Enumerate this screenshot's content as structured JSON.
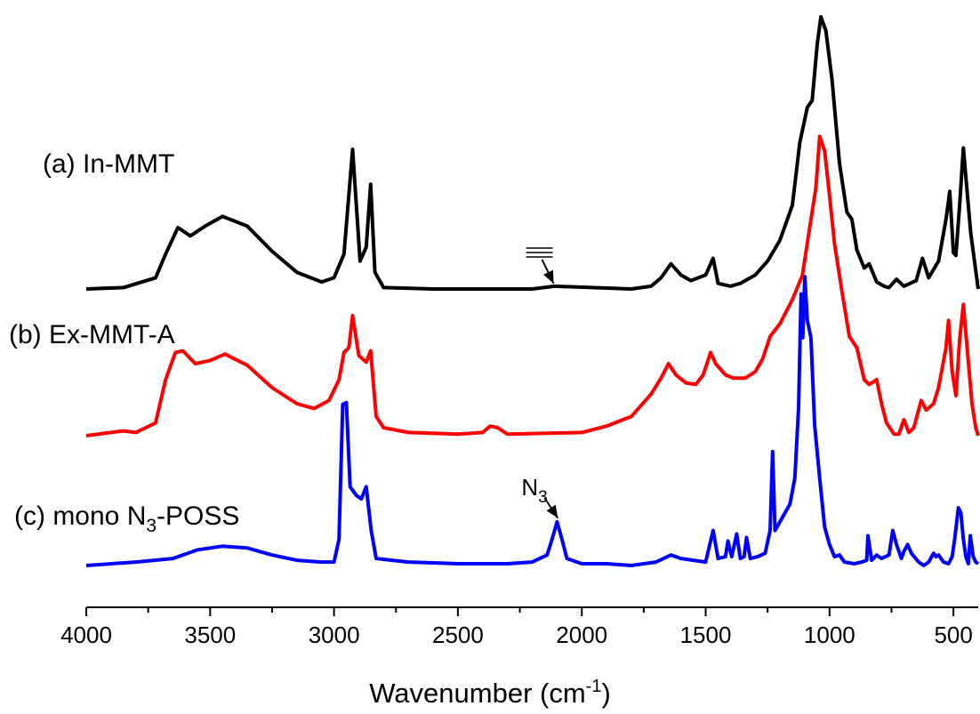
{
  "chart_data": {
    "type": "line",
    "xlabel": "Wavenumber (cm",
    "xlabel_sup": "-1",
    "xlabel_end": ")",
    "ylabel": "",
    "xlim": [
      4000,
      400
    ],
    "x_reversed": true,
    "xticks": [
      4000,
      3500,
      3000,
      2500,
      2000,
      1500,
      1000,
      500
    ],
    "yticks_shown": false,
    "grid": false,
    "series": [
      {
        "name": "(a) In-MMT",
        "name_prefix": "(a) In-MMT",
        "name_sub": "",
        "name_suffix": "",
        "color": "#000000",
        "points": [
          [
            4000,
            0
          ],
          [
            3850,
            0.01
          ],
          [
            3720,
            0.08
          ],
          [
            3680,
            0.25
          ],
          [
            3630,
            0.44
          ],
          [
            3580,
            0.38
          ],
          [
            3520,
            0.45
          ],
          [
            3450,
            0.52
          ],
          [
            3350,
            0.45
          ],
          [
            3250,
            0.27
          ],
          [
            3150,
            0.12
          ],
          [
            3050,
            0.05
          ],
          [
            3000,
            0.08
          ],
          [
            2960,
            0.25
          ],
          [
            2925,
            1.0
          ],
          [
            2895,
            0.2
          ],
          [
            2870,
            0.3
          ],
          [
            2852,
            0.75
          ],
          [
            2835,
            0.12
          ],
          [
            2800,
            0.01
          ],
          [
            2600,
            0
          ],
          [
            2200,
            0
          ],
          [
            2110,
            0.02
          ],
          [
            1800,
            0
          ],
          [
            1720,
            0.02
          ],
          [
            1680,
            0.08
          ],
          [
            1640,
            0.18
          ],
          [
            1600,
            0.1
          ],
          [
            1560,
            0.06
          ],
          [
            1500,
            0.1
          ],
          [
            1470,
            0.22
          ],
          [
            1450,
            0.04
          ],
          [
            1400,
            0.02
          ],
          [
            1360,
            0.04
          ],
          [
            1300,
            0.1
          ],
          [
            1250,
            0.2
          ],
          [
            1200,
            0.35
          ],
          [
            1150,
            0.6
          ],
          [
            1120,
            1.05
          ],
          [
            1090,
            1.3
          ],
          [
            1070,
            1.35
          ],
          [
            1050,
            1.75
          ],
          [
            1035,
            1.95
          ],
          [
            1015,
            1.85
          ],
          [
            990,
            1.5
          ],
          [
            960,
            0.9
          ],
          [
            930,
            0.55
          ],
          [
            910,
            0.5
          ],
          [
            890,
            0.28
          ],
          [
            860,
            0.15
          ],
          [
            840,
            0.18
          ],
          [
            810,
            0.05
          ],
          [
            780,
            0.02
          ],
          [
            760,
            0.01
          ],
          [
            730,
            0.07
          ],
          [
            700,
            0.02
          ],
          [
            650,
            0.06
          ],
          [
            625,
            0.22
          ],
          [
            600,
            0.08
          ],
          [
            560,
            0.2
          ],
          [
            530,
            0.5
          ],
          [
            515,
            0.7
          ],
          [
            500,
            0.26
          ],
          [
            490,
            0.24
          ],
          [
            475,
            0.6
          ],
          [
            460,
            1.01
          ],
          [
            445,
            0.7
          ],
          [
            430,
            0.4
          ],
          [
            415,
            0.2
          ],
          [
            400,
            0.0
          ]
        ]
      },
      {
        "name": "(b) Ex-MMT-A",
        "name_prefix": "(b) Ex-MMT-A",
        "name_sub": "",
        "name_suffix": "",
        "color": "#ff0000",
        "points": [
          [
            4000,
            0
          ],
          [
            3900,
            0.02
          ],
          [
            3850,
            0.03
          ],
          [
            3800,
            0.02
          ],
          [
            3760,
            0.05
          ],
          [
            3720,
            0.08
          ],
          [
            3680,
            0.35
          ],
          [
            3640,
            0.52
          ],
          [
            3610,
            0.53
          ],
          [
            3560,
            0.45
          ],
          [
            3500,
            0.47
          ],
          [
            3440,
            0.51
          ],
          [
            3350,
            0.44
          ],
          [
            3250,
            0.3
          ],
          [
            3150,
            0.2
          ],
          [
            3080,
            0.17
          ],
          [
            3020,
            0.22
          ],
          [
            2980,
            0.35
          ],
          [
            2960,
            0.52
          ],
          [
            2940,
            0.55
          ],
          [
            2925,
            0.75
          ],
          [
            2900,
            0.5
          ],
          [
            2870,
            0.46
          ],
          [
            2852,
            0.53
          ],
          [
            2830,
            0.12
          ],
          [
            2800,
            0.05
          ],
          [
            2700,
            0.02
          ],
          [
            2500,
            0.01
          ],
          [
            2400,
            0.02
          ],
          [
            2370,
            0.06
          ],
          [
            2340,
            0.05
          ],
          [
            2300,
            0.01
          ],
          [
            2000,
            0.02
          ],
          [
            1900,
            0.06
          ],
          [
            1800,
            0.12
          ],
          [
            1720,
            0.26
          ],
          [
            1680,
            0.36
          ],
          [
            1650,
            0.45
          ],
          [
            1620,
            0.38
          ],
          [
            1580,
            0.33
          ],
          [
            1540,
            0.32
          ],
          [
            1510,
            0.38
          ],
          [
            1480,
            0.52
          ],
          [
            1460,
            0.45
          ],
          [
            1420,
            0.38
          ],
          [
            1390,
            0.36
          ],
          [
            1340,
            0.36
          ],
          [
            1300,
            0.4
          ],
          [
            1270,
            0.48
          ],
          [
            1240,
            0.62
          ],
          [
            1200,
            0.7
          ],
          [
            1150,
            0.85
          ],
          [
            1110,
            1.0
          ],
          [
            1080,
            1.3
          ],
          [
            1055,
            1.55
          ],
          [
            1040,
            1.87
          ],
          [
            1020,
            1.78
          ],
          [
            1000,
            1.5
          ],
          [
            980,
            1.2
          ],
          [
            950,
            0.9
          ],
          [
            920,
            0.62
          ],
          [
            890,
            0.55
          ],
          [
            860,
            0.35
          ],
          [
            840,
            0.32
          ],
          [
            810,
            0.35
          ],
          [
            790,
            0.2
          ],
          [
            770,
            0.08
          ],
          [
            740,
            0.01
          ],
          [
            720,
            0.01
          ],
          [
            700,
            0.1
          ],
          [
            680,
            0.02
          ],
          [
            660,
            0.05
          ],
          [
            630,
            0.22
          ],
          [
            610,
            0.16
          ],
          [
            580,
            0.2
          ],
          [
            560,
            0.3
          ],
          [
            530,
            0.55
          ],
          [
            520,
            0.72
          ],
          [
            505,
            0.4
          ],
          [
            490,
            0.25
          ],
          [
            475,
            0.6
          ],
          [
            460,
            0.82
          ],
          [
            445,
            0.55
          ],
          [
            425,
            0.2
          ],
          [
            410,
            0.05
          ],
          [
            400,
            0.0
          ]
        ]
      },
      {
        "name": "(c) mono N3-POSS",
        "name_prefix": "(c) mono N",
        "name_sub": "3",
        "name_suffix": "-POSS",
        "color": "#0000ff",
        "points": [
          [
            4000,
            0
          ],
          [
            3800,
            0.02
          ],
          [
            3650,
            0.04
          ],
          [
            3550,
            0.09
          ],
          [
            3450,
            0.11
          ],
          [
            3350,
            0.1
          ],
          [
            3250,
            0.06
          ],
          [
            3150,
            0.03
          ],
          [
            3050,
            0.02
          ],
          [
            3000,
            0.02
          ],
          [
            2980,
            0.15
          ],
          [
            2965,
            0.92
          ],
          [
            2950,
            0.93
          ],
          [
            2935,
            0.45
          ],
          [
            2910,
            0.4
          ],
          [
            2890,
            0.38
          ],
          [
            2870,
            0.45
          ],
          [
            2850,
            0.2
          ],
          [
            2830,
            0.04
          ],
          [
            2700,
            0.02
          ],
          [
            2500,
            0.01
          ],
          [
            2300,
            0.01
          ],
          [
            2200,
            0.02
          ],
          [
            2140,
            0.06
          ],
          [
            2120,
            0.15
          ],
          [
            2100,
            0.25
          ],
          [
            2080,
            0.15
          ],
          [
            2060,
            0.04
          ],
          [
            2000,
            0.01
          ],
          [
            1900,
            0.01
          ],
          [
            1800,
            0.0
          ],
          [
            1700,
            0.02
          ],
          [
            1640,
            0.06
          ],
          [
            1600,
            0.04
          ],
          [
            1500,
            0.02
          ],
          [
            1470,
            0.2
          ],
          [
            1450,
            0.04
          ],
          [
            1420,
            0.05
          ],
          [
            1410,
            0.14
          ],
          [
            1395,
            0.05
          ],
          [
            1375,
            0.18
          ],
          [
            1360,
            0.04
          ],
          [
            1345,
            0.05
          ],
          [
            1335,
            0.16
          ],
          [
            1320,
            0.04
          ],
          [
            1290,
            0.05
          ],
          [
            1260,
            0.07
          ],
          [
            1240,
            0.2
          ],
          [
            1230,
            0.65
          ],
          [
            1220,
            0.2
          ],
          [
            1200,
            0.25
          ],
          [
            1180,
            0.3
          ],
          [
            1160,
            0.35
          ],
          [
            1140,
            0.5
          ],
          [
            1125,
            0.9
          ],
          [
            1115,
            1.55
          ],
          [
            1108,
            1.3
          ],
          [
            1100,
            1.65
          ],
          [
            1090,
            1.4
          ],
          [
            1075,
            1.3
          ],
          [
            1060,
            0.8
          ],
          [
            1040,
            0.5
          ],
          [
            1020,
            0.22
          ],
          [
            1000,
            0.12
          ],
          [
            980,
            0.05
          ],
          [
            960,
            0.06
          ],
          [
            940,
            0.02
          ],
          [
            900,
            0.01
          ],
          [
            870,
            0.02
          ],
          [
            850,
            0.03
          ],
          [
            845,
            0.17
          ],
          [
            830,
            0.03
          ],
          [
            810,
            0.06
          ],
          [
            790,
            0.04
          ],
          [
            760,
            0.06
          ],
          [
            745,
            0.2
          ],
          [
            730,
            0.12
          ],
          [
            710,
            0.04
          ],
          [
            700,
            0.08
          ],
          [
            685,
            0.12
          ],
          [
            670,
            0.07
          ],
          [
            640,
            0.02
          ],
          [
            620,
            0.0
          ],
          [
            600,
            0.02
          ],
          [
            580,
            0.07
          ],
          [
            570,
            0.05
          ],
          [
            560,
            0.06
          ],
          [
            540,
            0.02
          ],
          [
            520,
            0.01
          ],
          [
            505,
            0.05
          ],
          [
            495,
            0.15
          ],
          [
            480,
            0.33
          ],
          [
            470,
            0.3
          ],
          [
            460,
            0.15
          ],
          [
            450,
            0.05
          ],
          [
            440,
            0.01
          ],
          [
            432,
            0.17
          ],
          [
            420,
            0.05
          ],
          [
            410,
            0.02
          ],
          [
            400,
            0.01
          ]
        ]
      }
    ],
    "annotations": [
      {
        "text": "",
        "kind": "triple-bond-symbol",
        "series": 0,
        "x": 2110
      },
      {
        "text": "N",
        "sub": "3",
        "series": 2,
        "x": 2100
      }
    ]
  }
}
